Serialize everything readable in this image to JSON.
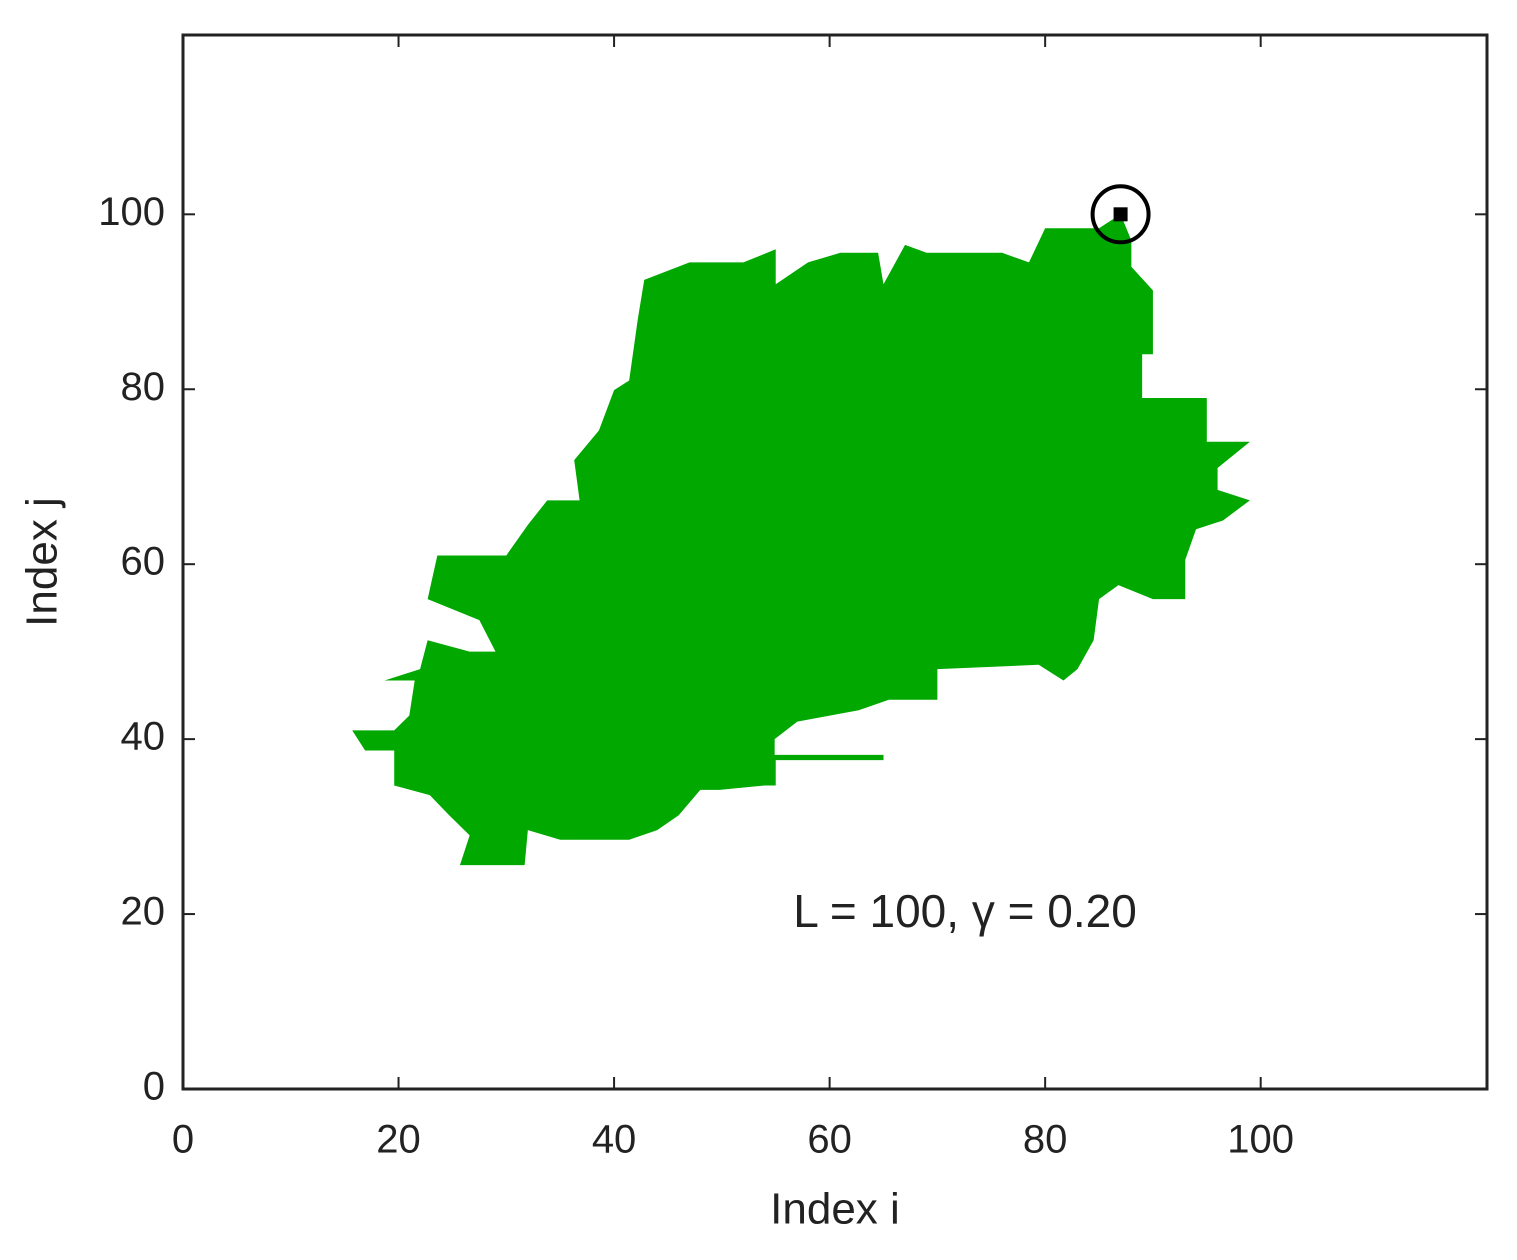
{
  "chart_data": {
    "type": "cluster",
    "xlabel": "Index i",
    "ylabel": "Index j",
    "annotation": "L = 100, γ = 0.20",
    "xlim": [
      0,
      121
    ],
    "ylim": [
      0,
      120.5
    ],
    "xticks": [
      0,
      20,
      40,
      60,
      80,
      100
    ],
    "yticks": [
      0,
      20,
      40,
      60,
      80,
      100
    ],
    "color": "#00a800",
    "x": [
      42.8,
      47,
      52,
      55,
      55,
      58,
      61,
      64.5,
      65,
      67,
      69,
      76,
      78.5,
      80,
      85,
      87,
      88,
      88,
      90,
      90,
      89,
      89,
      95,
      95,
      99,
      96,
      96,
      99,
      96.5,
      94,
      93,
      93,
      90,
      86.8,
      85,
      84.5,
      83,
      81.7,
      79.4,
      70,
      70,
      65.5,
      62.7,
      57,
      54.9,
      54.9,
      65,
      65,
      55,
      55,
      54,
      49.8,
      48,
      46,
      44,
      41.4,
      35,
      32,
      31.7,
      25.7,
      26.6,
      24.7,
      22.9,
      19.6,
      19.6,
      16.9,
      15.7,
      19.6,
      21,
      21.5,
      18.7,
      22,
      22.7,
      26.6,
      29,
      27.5,
      22.7,
      23.6,
      30,
      32,
      33.8,
      36.8,
      36.3,
      38.6,
      40,
      41.4,
      42.2
    ],
    "y": [
      92.5,
      94.5,
      94.5,
      96,
      92,
      94.5,
      95.6,
      95.6,
      92,
      96.5,
      95.6,
      95.6,
      94.5,
      98.4,
      98.4,
      100,
      97,
      94,
      91.3,
      84,
      84,
      79,
      79,
      74,
      74,
      71,
      68.5,
      67.3,
      65,
      64,
      60.5,
      56,
      56,
      57.6,
      56,
      51.3,
      48,
      46.7,
      48.5,
      48,
      44.5,
      44.5,
      43.3,
      42,
      40,
      38.2,
      38.2,
      37.6,
      37.6,
      34.7,
      34.7,
      34.2,
      34.2,
      31.3,
      29.6,
      28.5,
      28.5,
      29.6,
      25.6,
      25.6,
      29,
      31.3,
      33.6,
      34.7,
      38.7,
      38.7,
      41,
      41,
      42.7,
      46.7,
      46.7,
      48,
      51.3,
      50,
      50,
      53.6,
      56,
      61,
      61,
      64.5,
      67.3,
      67.3,
      71.9,
      75.3,
      79.9,
      81,
      88
    ],
    "marked_point": {
      "x": 87,
      "y": 100,
      "color": "#000000"
    }
  }
}
